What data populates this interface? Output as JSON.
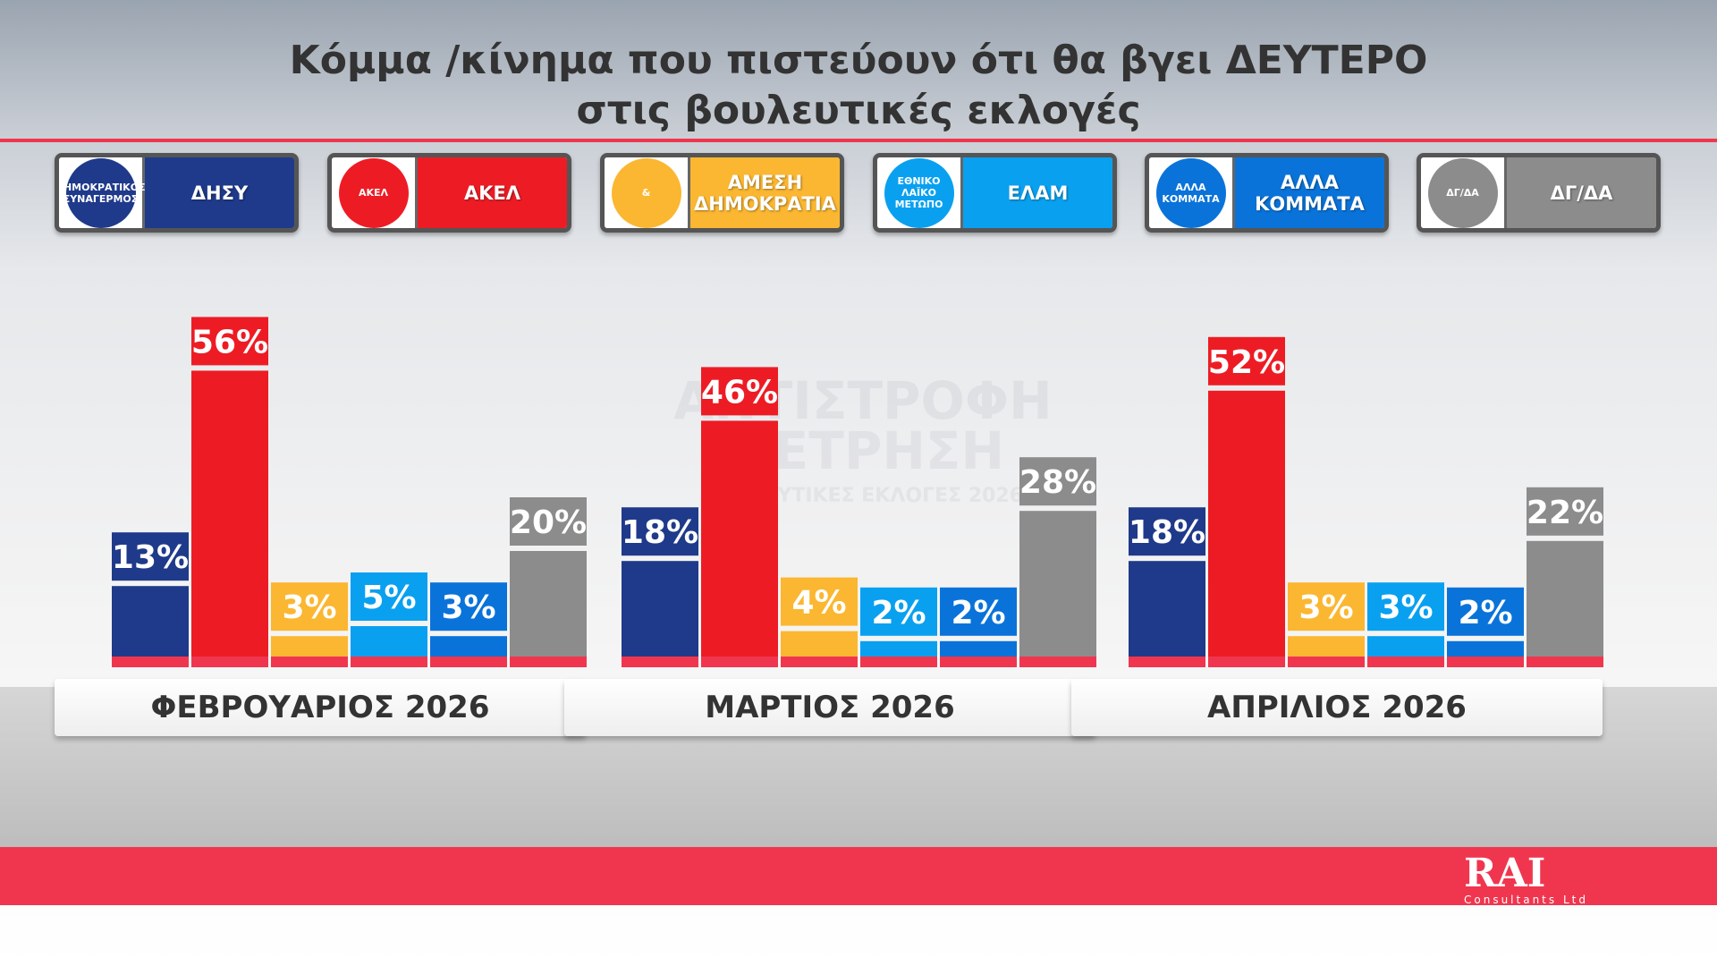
{
  "title_line1": "Κόμμα /κίνημα που πιστεύουν ότι θα βγει ΔΕΥΤΕΡΟ",
  "title_line2": "στις βουλευτικές εκλογές",
  "legend": [
    {
      "label": "ΔΗΣΥ",
      "logo_text": "ΔΗΜΟΚΡΑΤΙΚΟΣ ΣΥΝΑΓΕΡΜΟΣ",
      "color": "#1f3a8a"
    },
    {
      "label": "ΑΚΕΛ",
      "logo_text": "ΑΚΕΛ",
      "color": "#ed1c24"
    },
    {
      "label": "ΑΜΕΣΗ ΔΗΜΟΚΡΑΤΙΑ",
      "logo_text": "&",
      "color": "#fbb731"
    },
    {
      "label": "ΕΛΑΜ",
      "logo_text": "ΕΘΝΙΚΟ ΛΑΪΚΟ ΜΕΤΩΠΟ",
      "color": "#0aa0f0"
    },
    {
      "label": "ΑΛΛΑ ΚΟΜΜΑΤΑ",
      "logo_text": "ΑΛΛΑ ΚΟΜΜΑΤΑ",
      "color": "#0a73d9"
    },
    {
      "label": "ΔΓ/ΔΑ",
      "logo_text": "ΔΓ/ΔΑ",
      "color": "#8c8c8c"
    }
  ],
  "watermark": {
    "line1": "ΑΝΤΙΣΤΡΟΦΗ",
    "line2": "ΜΕΤΡΗΣΗ",
    "line3": "ΒΟΥΛΕΥΤΙΚΕΣ ΕΚΛΟΓΕΣ 2026"
  },
  "chart_data": {
    "type": "bar",
    "title": "Κόμμα /κίνημα που πιστεύουν ότι θα βγει ΔΕΥΤΕΡΟ στις βουλευτικές εκλογές",
    "categories": [
      "ΦΕΒΡΟΥΑΡΙΟΣ 2026",
      "ΜΑΡΤΙΟΣ 2026",
      "ΑΠΡΙΛΙΟΣ 2026"
    ],
    "unit": "%",
    "series": [
      {
        "name": "ΔΗΣΥ",
        "color": "#1f3a8a",
        "values": [
          13,
          18,
          18
        ]
      },
      {
        "name": "ΑΚΕΛ",
        "color": "#ed1c24",
        "values": [
          56,
          46,
          52
        ]
      },
      {
        "name": "ΑΜΕΣΗ ΔΗΜΟΚΡΑΤΙΑ",
        "color": "#fbb731",
        "values": [
          3,
          4,
          3
        ]
      },
      {
        "name": "ΕΛΑΜ",
        "color": "#0aa0f0",
        "values": [
          5,
          2,
          3
        ]
      },
      {
        "name": "ΑΛΛΑ ΚΟΜΜΑΤΑ",
        "color": "#0a73d9",
        "values": [
          3,
          2,
          2
        ]
      },
      {
        "name": "ΔΓ/ΔΑ",
        "color": "#8c8c8c",
        "values": [
          20,
          28,
          22
        ]
      }
    ],
    "legend_position": "top",
    "grid": false
  },
  "footer": {
    "brand": "RAI",
    "brand_sub": "Consultants Ltd"
  }
}
